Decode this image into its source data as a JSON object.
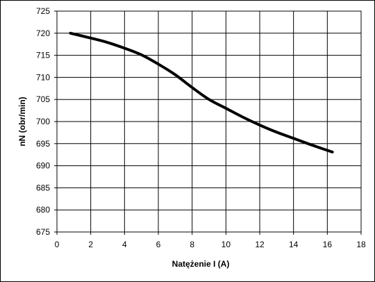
{
  "chart_data": {
    "type": "line",
    "title": "",
    "xlabel": "Natężenie I (A)",
    "ylabel": "nN (obr/min)",
    "xlim": [
      0,
      18
    ],
    "ylim": [
      675,
      725
    ],
    "xticks": [
      0,
      2,
      4,
      6,
      8,
      10,
      12,
      14,
      16,
      18
    ],
    "yticks": [
      675,
      680,
      685,
      690,
      695,
      700,
      705,
      710,
      715,
      720,
      725
    ],
    "x_tick_labels": [
      "0",
      "2",
      "4",
      "6",
      "8",
      "10",
      "12",
      "14",
      "16",
      "18"
    ],
    "y_tick_labels": [
      "675",
      "680",
      "685",
      "690",
      "695",
      "700",
      "705",
      "710",
      "715",
      "720",
      "725"
    ],
    "grid": true,
    "legend": "none",
    "series": [
      {
        "color": "#000000",
        "x": [
          0.8,
          2.0,
          3.0,
          4.0,
          5.0,
          6.0,
          7.0,
          8.0,
          9.0,
          10.0,
          11.0,
          12.0,
          13.0,
          14.0,
          15.0,
          16.3
        ],
        "y": [
          720.0,
          718.9,
          717.9,
          716.6,
          715.1,
          713.0,
          710.6,
          707.7,
          705.0,
          703.0,
          701.0,
          699.2,
          697.6,
          696.2,
          694.8,
          693.1
        ]
      }
    ]
  }
}
